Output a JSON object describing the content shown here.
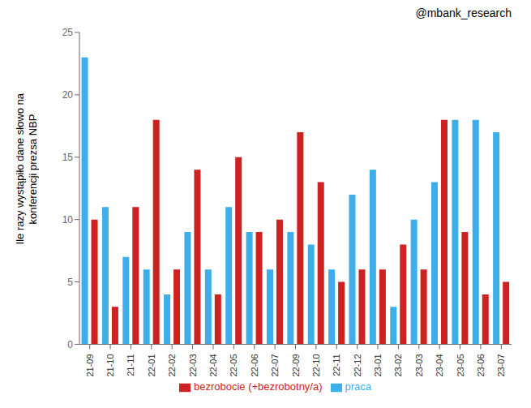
{
  "chart_data": {
    "type": "bar",
    "title": "@mbank_research",
    "ylabel": "Ile razy wystąpiło dane słowo na\nkonferencji prezsa NBP",
    "categories": [
      "21-09",
      "21-10",
      "21-11",
      "22-01",
      "22-02",
      "22-03",
      "22-04",
      "22-05",
      "22-06",
      "22-07",
      "22-09",
      "22-10",
      "22-11",
      "22-12",
      "23-01",
      "23-02",
      "23-03",
      "23-04",
      "23-05",
      "23-06",
      "23-07"
    ],
    "series": [
      {
        "name": "praca",
        "color": "#3daee9",
        "values": [
          23,
          11,
          7,
          6,
          4,
          9,
          6,
          11,
          9,
          6,
          9,
          8,
          6,
          12,
          14,
          3,
          10,
          13,
          18,
          18,
          17
        ]
      },
      {
        "name": "bezrobocie (+bezrobotny/a)",
        "color": "#cc2222",
        "values": [
          10,
          3,
          11,
          18,
          6,
          14,
          4,
          15,
          9,
          10,
          17,
          13,
          5,
          6,
          6,
          8,
          6,
          18,
          9,
          4,
          5
        ]
      }
    ],
    "ylim": [
      0,
      25
    ],
    "yticks": [
      0,
      5,
      10,
      15,
      20,
      25
    ],
    "grid": false,
    "legend": "bottom"
  }
}
